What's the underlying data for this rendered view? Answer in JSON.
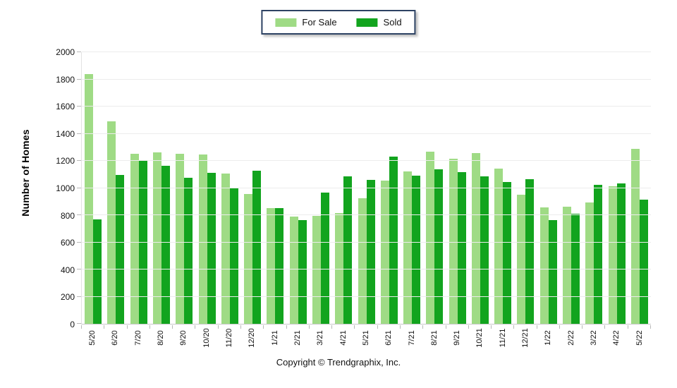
{
  "legend": {
    "items": [
      {
        "label": "For Sale",
        "color": "#9fdb85"
      },
      {
        "label": "Sold",
        "color": "#12a41e"
      }
    ]
  },
  "y_axis": {
    "title": "Number of Homes"
  },
  "footer": {
    "copyright": "Copyright © Trendgraphix, Inc."
  },
  "chart_data": {
    "type": "bar",
    "title": "",
    "xlabel": "",
    "ylabel": "Number of Homes",
    "ylim": [
      0,
      2000
    ],
    "ytick_step": 200,
    "grid": true,
    "legend_position": "top-center",
    "categories": [
      "5/20",
      "6/20",
      "7/20",
      "8/20",
      "9/20",
      "10/20",
      "11/20",
      "12/20",
      "1/21",
      "2/21",
      "3/21",
      "4/21",
      "5/21",
      "6/21",
      "7/21",
      "8/21",
      "9/21",
      "10/21",
      "11/21",
      "12/21",
      "1/22",
      "2/22",
      "3/22",
      "4/22",
      "5/22"
    ],
    "series": [
      {
        "name": "For Sale",
        "color": "#9fdb85",
        "values": [
          1840,
          1490,
          1250,
          1265,
          1250,
          1245,
          1105,
          955,
          850,
          790,
          795,
          815,
          925,
          1055,
          1120,
          1270,
          1215,
          1255,
          1145,
          950,
          855,
          860,
          895,
          1015,
          1290
        ]
      },
      {
        "name": "Sold",
        "color": "#12a41e",
        "values": [
          770,
          1095,
          1200,
          1165,
          1075,
          1110,
          1005,
          1125,
          850,
          765,
          965,
          1085,
          1060,
          1230,
          1090,
          1140,
          1115,
          1085,
          1045,
          1065,
          765,
          810,
          1025,
          1035,
          915
        ]
      }
    ]
  }
}
